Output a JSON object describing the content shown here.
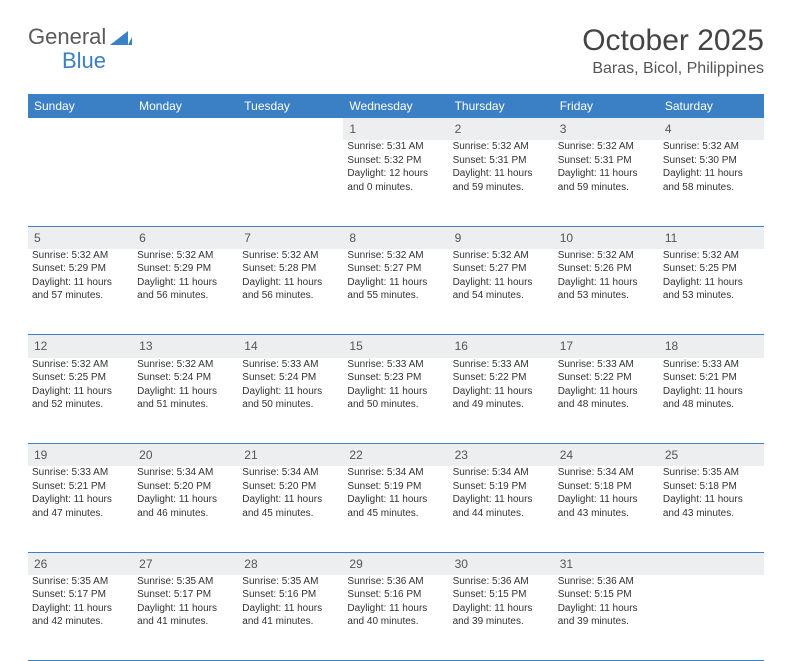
{
  "logo": {
    "text1": "General",
    "text2": "Blue"
  },
  "title": "October 2025",
  "location": "Baras, Bicol, Philippines",
  "colors": {
    "header_bg": "#3b7fc4",
    "header_text": "#ffffff",
    "daynum_bg": "#eceeef",
    "row_divider": "#3b7fc4",
    "text": "#333333",
    "logo_gray": "#5a5a5a",
    "logo_blue": "#3b7fc4",
    "background": "#ffffff"
  },
  "typography": {
    "title_fontsize": 30,
    "location_fontsize": 16,
    "header_fontsize": 12,
    "daynum_fontsize": 12,
    "cell_fontsize": 10
  },
  "weekdays": [
    "Sunday",
    "Monday",
    "Tuesday",
    "Wednesday",
    "Thursday",
    "Friday",
    "Saturday"
  ],
  "weeks": [
    [
      null,
      null,
      null,
      {
        "n": "1",
        "sunrise": "5:31 AM",
        "sunset": "5:32 PM",
        "daylight": "12 hours and 0 minutes."
      },
      {
        "n": "2",
        "sunrise": "5:32 AM",
        "sunset": "5:31 PM",
        "daylight": "11 hours and 59 minutes."
      },
      {
        "n": "3",
        "sunrise": "5:32 AM",
        "sunset": "5:31 PM",
        "daylight": "11 hours and 59 minutes."
      },
      {
        "n": "4",
        "sunrise": "5:32 AM",
        "sunset": "5:30 PM",
        "daylight": "11 hours and 58 minutes."
      }
    ],
    [
      {
        "n": "5",
        "sunrise": "5:32 AM",
        "sunset": "5:29 PM",
        "daylight": "11 hours and 57 minutes."
      },
      {
        "n": "6",
        "sunrise": "5:32 AM",
        "sunset": "5:29 PM",
        "daylight": "11 hours and 56 minutes."
      },
      {
        "n": "7",
        "sunrise": "5:32 AM",
        "sunset": "5:28 PM",
        "daylight": "11 hours and 56 minutes."
      },
      {
        "n": "8",
        "sunrise": "5:32 AM",
        "sunset": "5:27 PM",
        "daylight": "11 hours and 55 minutes."
      },
      {
        "n": "9",
        "sunrise": "5:32 AM",
        "sunset": "5:27 PM",
        "daylight": "11 hours and 54 minutes."
      },
      {
        "n": "10",
        "sunrise": "5:32 AM",
        "sunset": "5:26 PM",
        "daylight": "11 hours and 53 minutes."
      },
      {
        "n": "11",
        "sunrise": "5:32 AM",
        "sunset": "5:25 PM",
        "daylight": "11 hours and 53 minutes."
      }
    ],
    [
      {
        "n": "12",
        "sunrise": "5:32 AM",
        "sunset": "5:25 PM",
        "daylight": "11 hours and 52 minutes."
      },
      {
        "n": "13",
        "sunrise": "5:32 AM",
        "sunset": "5:24 PM",
        "daylight": "11 hours and 51 minutes."
      },
      {
        "n": "14",
        "sunrise": "5:33 AM",
        "sunset": "5:24 PM",
        "daylight": "11 hours and 50 minutes."
      },
      {
        "n": "15",
        "sunrise": "5:33 AM",
        "sunset": "5:23 PM",
        "daylight": "11 hours and 50 minutes."
      },
      {
        "n": "16",
        "sunrise": "5:33 AM",
        "sunset": "5:22 PM",
        "daylight": "11 hours and 49 minutes."
      },
      {
        "n": "17",
        "sunrise": "5:33 AM",
        "sunset": "5:22 PM",
        "daylight": "11 hours and 48 minutes."
      },
      {
        "n": "18",
        "sunrise": "5:33 AM",
        "sunset": "5:21 PM",
        "daylight": "11 hours and 48 minutes."
      }
    ],
    [
      {
        "n": "19",
        "sunrise": "5:33 AM",
        "sunset": "5:21 PM",
        "daylight": "11 hours and 47 minutes."
      },
      {
        "n": "20",
        "sunrise": "5:34 AM",
        "sunset": "5:20 PM",
        "daylight": "11 hours and 46 minutes."
      },
      {
        "n": "21",
        "sunrise": "5:34 AM",
        "sunset": "5:20 PM",
        "daylight": "11 hours and 45 minutes."
      },
      {
        "n": "22",
        "sunrise": "5:34 AM",
        "sunset": "5:19 PM",
        "daylight": "11 hours and 45 minutes."
      },
      {
        "n": "23",
        "sunrise": "5:34 AM",
        "sunset": "5:19 PM",
        "daylight": "11 hours and 44 minutes."
      },
      {
        "n": "24",
        "sunrise": "5:34 AM",
        "sunset": "5:18 PM",
        "daylight": "11 hours and 43 minutes."
      },
      {
        "n": "25",
        "sunrise": "5:35 AM",
        "sunset": "5:18 PM",
        "daylight": "11 hours and 43 minutes."
      }
    ],
    [
      {
        "n": "26",
        "sunrise": "5:35 AM",
        "sunset": "5:17 PM",
        "daylight": "11 hours and 42 minutes."
      },
      {
        "n": "27",
        "sunrise": "5:35 AM",
        "sunset": "5:17 PM",
        "daylight": "11 hours and 41 minutes."
      },
      {
        "n": "28",
        "sunrise": "5:35 AM",
        "sunset": "5:16 PM",
        "daylight": "11 hours and 41 minutes."
      },
      {
        "n": "29",
        "sunrise": "5:36 AM",
        "sunset": "5:16 PM",
        "daylight": "11 hours and 40 minutes."
      },
      {
        "n": "30",
        "sunrise": "5:36 AM",
        "sunset": "5:15 PM",
        "daylight": "11 hours and 39 minutes."
      },
      {
        "n": "31",
        "sunrise": "5:36 AM",
        "sunset": "5:15 PM",
        "daylight": "11 hours and 39 minutes."
      },
      null
    ]
  ],
  "labels": {
    "sunrise": "Sunrise: ",
    "sunset": "Sunset: ",
    "daylight": "Daylight: "
  }
}
